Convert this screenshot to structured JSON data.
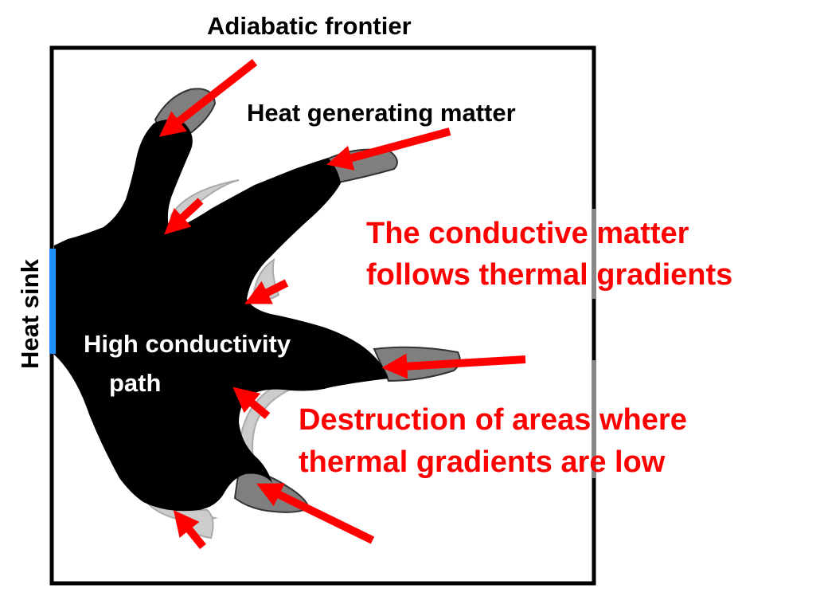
{
  "labels": {
    "boundary": "Adiabatic frontier",
    "heat_sink": "Heat sink",
    "heat_source": "Heat generating matter",
    "path_line1": "High conductivity",
    "path_line2": "path",
    "gradient_line1": "The conductive matter",
    "gradient_line2": "follows thermal gradients",
    "destruction_line1": "Destruction of areas where",
    "destruction_line2": "thermal gradients are low"
  },
  "colors": {
    "conductive_matter": "#000000",
    "growth_fringe": "#808080",
    "removed_fringe": "#c8c8c8",
    "arrow": "#ff0000",
    "heat_sink": "#1e90ff",
    "highlight_text": "#ff0000",
    "boundary": "#000000"
  }
}
